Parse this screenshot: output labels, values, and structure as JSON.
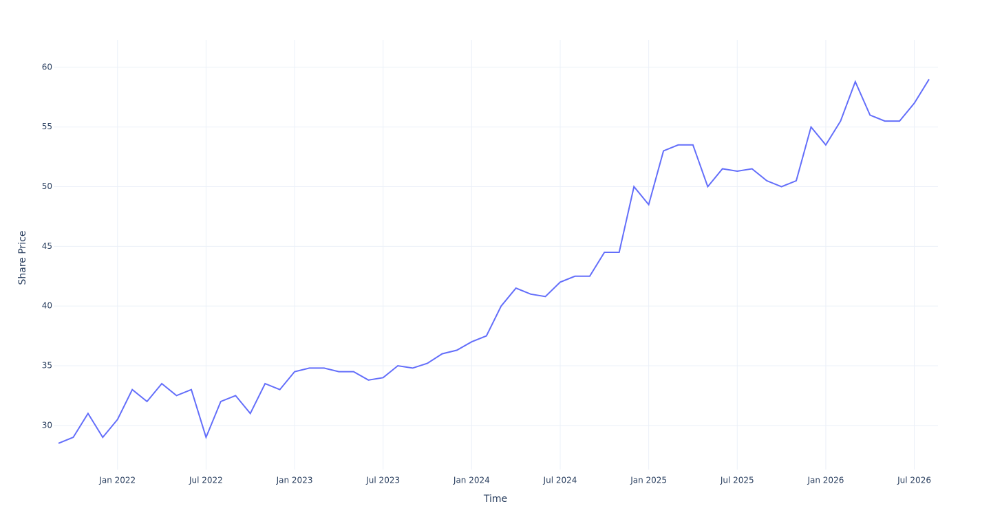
{
  "chart_data": {
    "type": "line",
    "x_label": "Time",
    "y_label": "Share Price",
    "x": [
      "2021-09",
      "2021-10",
      "2021-11",
      "2021-12",
      "2022-01",
      "2022-02",
      "2022-03",
      "2022-04",
      "2022-05",
      "2022-06",
      "2022-07",
      "2022-08",
      "2022-09",
      "2022-10",
      "2022-11",
      "2022-12",
      "2023-01",
      "2023-02",
      "2023-03",
      "2023-04",
      "2023-05",
      "2023-06",
      "2023-07",
      "2023-08",
      "2023-09",
      "2023-10",
      "2023-11",
      "2023-12",
      "2024-01",
      "2024-02",
      "2024-03",
      "2024-04",
      "2024-05",
      "2024-06",
      "2024-07",
      "2024-08",
      "2024-09",
      "2024-10",
      "2024-11",
      "2024-12",
      "2025-01",
      "2025-02",
      "2025-03",
      "2025-04",
      "2025-05",
      "2025-06",
      "2025-07",
      "2025-08",
      "2025-09",
      "2025-10",
      "2025-11",
      "2025-12",
      "2026-01",
      "2026-02",
      "2026-03",
      "2026-04",
      "2026-05",
      "2026-06",
      "2026-07",
      "2026-08"
    ],
    "series": [
      {
        "name": "Share Price",
        "color": "#636efa",
        "values": [
          28.5,
          29,
          31,
          29,
          30.5,
          33,
          32,
          33.5,
          32.5,
          33,
          29,
          32,
          32.5,
          31,
          33.5,
          33,
          34.5,
          34.8,
          34.8,
          34.5,
          34.5,
          33.8,
          34,
          35,
          34.8,
          35.2,
          36,
          36.3,
          37,
          37.5,
          40,
          41.5,
          41,
          40.8,
          42,
          42.5,
          42.5,
          44.5,
          44.5,
          50,
          48.5,
          53,
          53.5,
          53.5,
          50,
          51.5,
          51.3,
          51.5,
          50.5,
          50,
          50.5,
          55,
          53.5,
          55.5,
          58.8,
          56,
          55.5,
          55.5,
          57,
          59
        ]
      }
    ],
    "xlim": [
      "2021-09",
      "2026-08"
    ],
    "xticks": [
      {
        "value": "2022-01",
        "label": "Jan 2022"
      },
      {
        "value": "2022-07",
        "label": "Jul 2022"
      },
      {
        "value": "2023-01",
        "label": "Jan 2023"
      },
      {
        "value": "2023-07",
        "label": "Jul 2023"
      },
      {
        "value": "2024-01",
        "label": "Jan 2024"
      },
      {
        "value": "2024-07",
        "label": "Jul 2024"
      },
      {
        "value": "2025-01",
        "label": "Jan 2025"
      },
      {
        "value": "2025-07",
        "label": "Jul 2025"
      },
      {
        "value": "2026-01",
        "label": "Jan 2026"
      },
      {
        "value": "2026-07",
        "label": "Jul 2026"
      }
    ],
    "ylim": [
      26.3,
      62.3
    ],
    "yticks": [
      30,
      35,
      40,
      45,
      50,
      55,
      60
    ],
    "grid": true
  }
}
